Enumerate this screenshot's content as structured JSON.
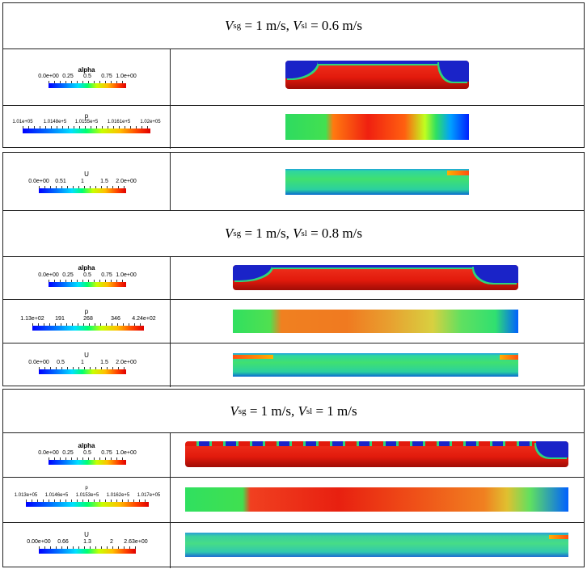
{
  "blocks": [
    {
      "header": {
        "v1": "V",
        "s1": "sg",
        "e1": " = 1 m/s, ",
        "v2": "V",
        "s2": "sl",
        "e2": " = 0.6 m/s"
      },
      "rows": [
        {
          "field": "alpha",
          "title": "alpha",
          "ticks": [
            "0.0e+00",
            "0.25",
            "0.5",
            "0.75",
            "1.0e+00"
          ]
        },
        {
          "field": "p",
          "title": "p",
          "ticks": [
            "1.01e+05",
            "1.0148e+5",
            "1.0155e+5",
            "1.0161e+5",
            "1.02e+05"
          ]
        },
        {
          "field": "U",
          "title": "U",
          "ticks": [
            "0.0e+00",
            "0.51",
            "1",
            "1.5",
            "2.0e+00"
          ]
        }
      ]
    },
    {
      "header": {
        "v1": "V",
        "s1": "sg",
        "e1": " = 1 m/s, ",
        "v2": "V",
        "s2": "sl",
        "e2": " = 0.8 m/s"
      },
      "rows": [
        {
          "field": "alpha",
          "title": "alpha",
          "ticks": [
            "0.0e+00",
            "0.25",
            "0.5",
            "0.75",
            "1.0e+00"
          ]
        },
        {
          "field": "p",
          "title": "p",
          "ticks": [
            "1.13e+02",
            "191",
            "268",
            "346",
            "4.24e+02"
          ]
        },
        {
          "field": "U",
          "title": "U",
          "ticks": [
            "0.0e+00",
            "0.5",
            "1",
            "1.5",
            "2.0e+00"
          ]
        }
      ]
    },
    {
      "header": {
        "v1": "V",
        "s1": "sg",
        "e1": " = 1 m/s, ",
        "v2": "V",
        "s2": "sl",
        "e2": " = 1 m/s"
      },
      "rows": [
        {
          "field": "alpha",
          "title": "alpha",
          "ticks": [
            "0.0e+00",
            "0.25",
            "0.5",
            "0.75",
            "1.0e+00"
          ]
        },
        {
          "field": "p",
          "title": "p",
          "ticks": [
            "1.013e+05",
            "1.0146e+5",
            "1.0153e+5",
            "1.0162e+5",
            "1.017e+05"
          ]
        },
        {
          "field": "U",
          "title": "U",
          "ticks": [
            "0.00e+00",
            "0.66",
            "1.3",
            "2",
            "2.63e+00"
          ]
        }
      ]
    }
  ],
  "colors": {
    "liquid": "#e41a0e",
    "gas": "#1a23c8",
    "interface": "#2ed67a"
  }
}
